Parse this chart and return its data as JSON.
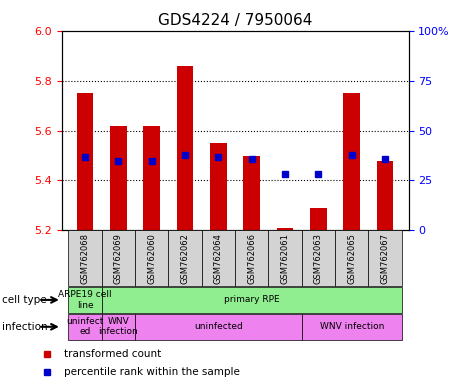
{
  "title": "GDS4224 / 7950064",
  "samples": [
    "GSM762068",
    "GSM762069",
    "GSM762060",
    "GSM762062",
    "GSM762064",
    "GSM762066",
    "GSM762061",
    "GSM762063",
    "GSM762065",
    "GSM762067"
  ],
  "bar_values": [
    5.75,
    5.62,
    5.62,
    5.86,
    5.55,
    5.5,
    5.21,
    5.29,
    5.75,
    5.48
  ],
  "bar_bottom": 5.2,
  "percentile_values": [
    37,
    35,
    35,
    38,
    37,
    36,
    28,
    28,
    38,
    36
  ],
  "ylim_left": [
    5.2,
    6.0
  ],
  "ylim_right": [
    0,
    100
  ],
  "yticks_left": [
    5.2,
    5.4,
    5.6,
    5.8,
    6.0
  ],
  "yticks_right": [
    0,
    25,
    50,
    75,
    100
  ],
  "ytick_labels_right": [
    "0",
    "25",
    "50",
    "75",
    "100%"
  ],
  "bar_color": "#cc0000",
  "dot_color": "#0000cc",
  "legend_bar_label": "transformed count",
  "legend_dot_label": "percentile rank within the sample",
  "title_fontsize": 11,
  "bar_width": 0.5,
  "sample_bg_color": "#d3d3d3",
  "cell_green": "#90ee90",
  "inf_pink": "#ee82ee",
  "spans_cell": [
    [
      -0.5,
      1.0,
      "ARPE19 cell\nline"
    ],
    [
      0.5,
      9.0,
      "primary RPE"
    ]
  ],
  "spans_inf": [
    [
      -0.5,
      1.0,
      "uninfect\ned"
    ],
    [
      0.5,
      1.0,
      "WNV\ninfection"
    ],
    [
      1.5,
      5.0,
      "uninfected"
    ],
    [
      6.5,
      3.0,
      "WNV infection"
    ]
  ],
  "grid_yticks": [
    5.4,
    5.6,
    5.8
  ]
}
